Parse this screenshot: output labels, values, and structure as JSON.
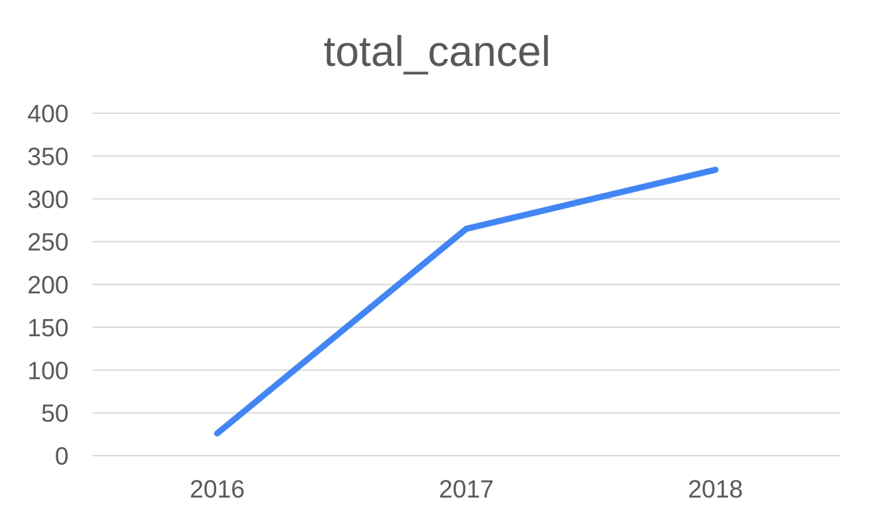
{
  "chart_data": {
    "type": "line",
    "title": "total_cancel",
    "xlabel": "",
    "ylabel": "",
    "categories": [
      "2016",
      "2017",
      "2018"
    ],
    "series": [
      {
        "values": [
          26,
          265,
          334
        ],
        "color": "#4285f4"
      }
    ],
    "ylim": [
      0,
      400
    ],
    "yticks": [
      0,
      50,
      100,
      150,
      200,
      250,
      300,
      350,
      400
    ],
    "grid": true,
    "legend": "none"
  }
}
